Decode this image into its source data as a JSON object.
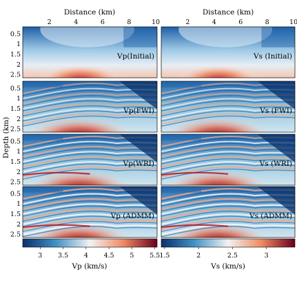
{
  "figure": {
    "top_axis_label": "Distance (km)",
    "left_axis_label": "Depth (km)",
    "distance_ticks": [
      "2",
      "4",
      "6",
      "8",
      "10"
    ],
    "depth_ticks": [
      "0.5",
      "1",
      "1.5",
      "2",
      "2.5"
    ]
  },
  "panels": {
    "left": [
      {
        "label": "Vp(Initial)",
        "kind": "initial"
      },
      {
        "label": "Vp(FWI)",
        "kind": "fwi"
      },
      {
        "label": "Vp(WRI)",
        "kind": "wri"
      },
      {
        "label": "Vp (ADMM)",
        "kind": "admm"
      }
    ],
    "right": [
      {
        "label": "Vs (Initial)",
        "kind": "initial"
      },
      {
        "label": "Vs (FWI)",
        "kind": "fwi"
      },
      {
        "label": "Vs (WRI)",
        "kind": "wri"
      },
      {
        "label": "Vs (ADMM)",
        "kind": "admm"
      }
    ]
  },
  "colorbars": {
    "left": {
      "label": "Vp (km/s)",
      "ticks": [
        "3",
        "3.5",
        "4",
        "4.5",
        "5",
        "5.5"
      ]
    },
    "right": {
      "label": "Vs (km/s)",
      "ticks": [
        "1.5",
        "2",
        "2.5",
        "3"
      ]
    }
  },
  "colors": {
    "deep_blue": "#08306b",
    "mid_blue": "#4292c6",
    "white": "#f7f7f7",
    "mid_red": "#ef8a62",
    "deep_red": "#67001f"
  }
}
